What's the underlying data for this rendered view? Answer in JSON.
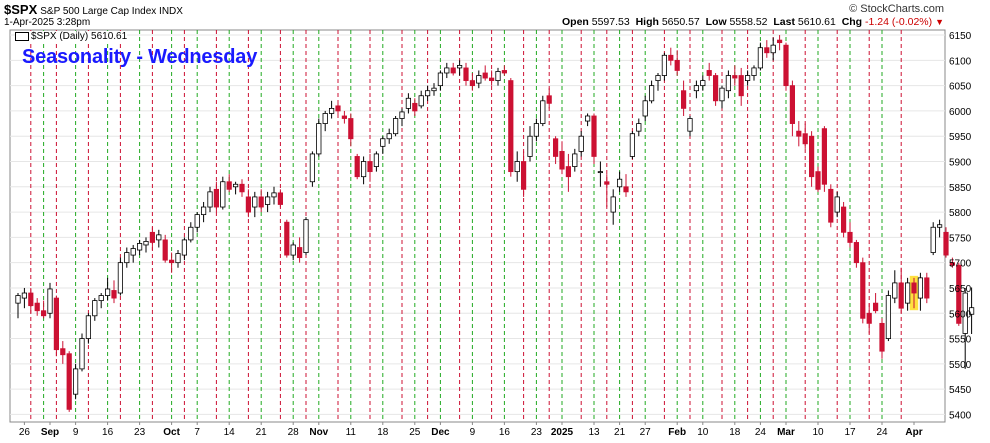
{
  "header": {
    "symbol": "$SPX",
    "description": "S&P 500 Large Cap Index INDX",
    "datetime": "1-Apr-2025 3:28pm",
    "brand": "© StockCharts.com",
    "open_label": "Open",
    "open": "5597.53",
    "high_label": "High",
    "high": "5650.57",
    "low_label": "Low",
    "low": "5558.52",
    "last_label": "Last",
    "last": "5610.61",
    "chg_label": "Chg",
    "chg": "-1.24 (-0.02%)"
  },
  "legend": {
    "text": "$SPX (Daily) 5610.61"
  },
  "overlay_title": "Seasonality - Wednesday",
  "colors": {
    "up": "#ffffff",
    "up_stroke": "#000000",
    "down": "#cc1133",
    "green_line": "#22aa22",
    "red_line": "#cc1133",
    "highlight": "#ffd700"
  },
  "chart_data": {
    "type": "candlestick",
    "title": "Seasonality - Wednesday",
    "ylim": [
      5385,
      6160
    ],
    "y_ticks": [
      5400,
      5450,
      5500,
      5550,
      5600,
      5650,
      5700,
      5750,
      5800,
      5850,
      5900,
      5950,
      6000,
      6050,
      6100,
      6150
    ],
    "x_ticks": [
      {
        "i": 1,
        "label": "26"
      },
      {
        "i": 5,
        "label": "Sep"
      },
      {
        "i": 9,
        "label": "9"
      },
      {
        "i": 14,
        "label": "16"
      },
      {
        "i": 19,
        "label": "23"
      },
      {
        "i": 24,
        "label": "Oct"
      },
      {
        "i": 28,
        "label": "7"
      },
      {
        "i": 33,
        "label": "14"
      },
      {
        "i": 38,
        "label": "21"
      },
      {
        "i": 43,
        "label": "28"
      },
      {
        "i": 47,
        "label": "Nov"
      },
      {
        "i": 52,
        "label": "11"
      },
      {
        "i": 57,
        "label": "18"
      },
      {
        "i": 62,
        "label": "25"
      },
      {
        "i": 66,
        "label": "Dec"
      },
      {
        "i": 71,
        "label": "9"
      },
      {
        "i": 76,
        "label": "16"
      },
      {
        "i": 81,
        "label": "23"
      },
      {
        "i": 85,
        "label": "2025"
      },
      {
        "i": 90,
        "label": "13"
      },
      {
        "i": 94,
        "label": "21"
      },
      {
        "i": 98,
        "label": "27"
      },
      {
        "i": 103,
        "label": "Feb"
      },
      {
        "i": 107,
        "label": "10"
      },
      {
        "i": 112,
        "label": "18"
      },
      {
        "i": 116,
        "label": "24"
      },
      {
        "i": 120,
        "label": "Mar"
      },
      {
        "i": 125,
        "label": "10"
      },
      {
        "i": 130,
        "label": "17"
      },
      {
        "i": 135,
        "label": "24"
      },
      {
        "i": 140,
        "label": "Apr"
      }
    ],
    "seasonality_lines": {
      "green": [
        4,
        9,
        14,
        19,
        24,
        28,
        33,
        38,
        43,
        47,
        52,
        57,
        62,
        66,
        71,
        76,
        81,
        85,
        90,
        94,
        98,
        103,
        107,
        112,
        116,
        120,
        125,
        130,
        135
      ],
      "red": [
        2,
        6,
        11,
        16,
        21,
        26,
        31,
        36,
        41,
        45,
        50,
        55,
        60,
        64,
        69,
        74,
        79,
        83,
        88,
        92,
        96,
        101,
        105,
        110,
        114,
        118,
        123,
        128,
        133,
        138
      ]
    },
    "highlight_index": 140,
    "candles": [
      {
        "o": 5620,
        "h": 5640,
        "l": 5590,
        "c": 5635
      },
      {
        "o": 5630,
        "h": 5650,
        "l": 5610,
        "c": 5640
      },
      {
        "o": 5640,
        "h": 5650,
        "l": 5600,
        "c": 5615
      },
      {
        "o": 5620,
        "h": 5630,
        "l": 5595,
        "c": 5605
      },
      {
        "o": 5605,
        "h": 5625,
        "l": 5590,
        "c": 5595
      },
      {
        "o": 5600,
        "h": 5660,
        "l": 5590,
        "c": 5648
      },
      {
        "o": 5630,
        "h": 5635,
        "l": 5515,
        "c": 5528
      },
      {
        "o": 5530,
        "h": 5545,
        "l": 5500,
        "c": 5518
      },
      {
        "o": 5520,
        "h": 5525,
        "l": 5405,
        "c": 5410
      },
      {
        "o": 5440,
        "h": 5500,
        "l": 5430,
        "c": 5490
      },
      {
        "o": 5490,
        "h": 5560,
        "l": 5485,
        "c": 5550
      },
      {
        "o": 5550,
        "h": 5600,
        "l": 5540,
        "c": 5595
      },
      {
        "o": 5595,
        "h": 5630,
        "l": 5585,
        "c": 5625
      },
      {
        "o": 5625,
        "h": 5640,
        "l": 5610,
        "c": 5635
      },
      {
        "o": 5635,
        "h": 5670,
        "l": 5625,
        "c": 5648
      },
      {
        "o": 5645,
        "h": 5665,
        "l": 5620,
        "c": 5630
      },
      {
        "o": 5640,
        "h": 5710,
        "l": 5635,
        "c": 5700
      },
      {
        "o": 5700,
        "h": 5730,
        "l": 5690,
        "c": 5720
      },
      {
        "o": 5715,
        "h": 5735,
        "l": 5700,
        "c": 5728
      },
      {
        "o": 5725,
        "h": 5745,
        "l": 5715,
        "c": 5738
      },
      {
        "o": 5735,
        "h": 5750,
        "l": 5720,
        "c": 5742
      },
      {
        "o": 5760,
        "h": 5770,
        "l": 5725,
        "c": 5740
      },
      {
        "o": 5745,
        "h": 5765,
        "l": 5730,
        "c": 5755
      },
      {
        "o": 5745,
        "h": 5755,
        "l": 5700,
        "c": 5705
      },
      {
        "o": 5705,
        "h": 5720,
        "l": 5680,
        "c": 5700
      },
      {
        "o": 5700,
        "h": 5725,
        "l": 5690,
        "c": 5718
      },
      {
        "o": 5715,
        "h": 5750,
        "l": 5705,
        "c": 5745
      },
      {
        "o": 5745,
        "h": 5780,
        "l": 5740,
        "c": 5770
      },
      {
        "o": 5770,
        "h": 5800,
        "l": 5760,
        "c": 5795
      },
      {
        "o": 5795,
        "h": 5820,
        "l": 5780,
        "c": 5810
      },
      {
        "o": 5810,
        "h": 5850,
        "l": 5800,
        "c": 5840
      },
      {
        "o": 5845,
        "h": 5860,
        "l": 5800,
        "c": 5810
      },
      {
        "o": 5810,
        "h": 5870,
        "l": 5805,
        "c": 5860
      },
      {
        "o": 5860,
        "h": 5875,
        "l": 5840,
        "c": 5845
      },
      {
        "o": 5850,
        "h": 5860,
        "l": 5835,
        "c": 5855
      },
      {
        "o": 5855,
        "h": 5865,
        "l": 5830,
        "c": 5840
      },
      {
        "o": 5830,
        "h": 5845,
        "l": 5790,
        "c": 5800
      },
      {
        "o": 5810,
        "h": 5840,
        "l": 5790,
        "c": 5830
      },
      {
        "o": 5830,
        "h": 5845,
        "l": 5800,
        "c": 5810
      },
      {
        "o": 5815,
        "h": 5840,
        "l": 5800,
        "c": 5830
      },
      {
        "o": 5830,
        "h": 5850,
        "l": 5815,
        "c": 5838
      },
      {
        "o": 5838,
        "h": 5845,
        "l": 5810,
        "c": 5815
      },
      {
        "o": 5780,
        "h": 5785,
        "l": 5710,
        "c": 5715
      },
      {
        "o": 5715,
        "h": 5740,
        "l": 5705,
        "c": 5735
      },
      {
        "o": 5730,
        "h": 5750,
        "l": 5700,
        "c": 5710
      },
      {
        "o": 5720,
        "h": 5790,
        "l": 5715,
        "c": 5785
      },
      {
        "o": 5860,
        "h": 5920,
        "l": 5850,
        "c": 5915
      },
      {
        "o": 5915,
        "h": 5985,
        "l": 5910,
        "c": 5975
      },
      {
        "o": 5975,
        "h": 6000,
        "l": 5960,
        "c": 5995
      },
      {
        "o": 5995,
        "h": 6020,
        "l": 5985,
        "c": 6005
      },
      {
        "o": 6010,
        "h": 6020,
        "l": 5990,
        "c": 6000
      },
      {
        "o": 5990,
        "h": 6000,
        "l": 5975,
        "c": 5985
      },
      {
        "o": 5985,
        "h": 5995,
        "l": 5930,
        "c": 5945
      },
      {
        "o": 5910,
        "h": 5915,
        "l": 5865,
        "c": 5870
      },
      {
        "o": 5870,
        "h": 5910,
        "l": 5855,
        "c": 5900
      },
      {
        "o": 5900,
        "h": 5915,
        "l": 5860,
        "c": 5880
      },
      {
        "o": 5890,
        "h": 5920,
        "l": 5880,
        "c": 5915
      },
      {
        "o": 5930,
        "h": 5950,
        "l": 5915,
        "c": 5945
      },
      {
        "o": 5945,
        "h": 5965,
        "l": 5935,
        "c": 5955
      },
      {
        "o": 5955,
        "h": 5990,
        "l": 5950,
        "c": 5985
      },
      {
        "o": 5985,
        "h": 6005,
        "l": 5970,
        "c": 5998
      },
      {
        "o": 6005,
        "h": 6035,
        "l": 5995,
        "c": 6025
      },
      {
        "o": 6015,
        "h": 6025,
        "l": 5990,
        "c": 6000
      },
      {
        "o": 6010,
        "h": 6040,
        "l": 6005,
        "c": 6030
      },
      {
        "o": 6030,
        "h": 6050,
        "l": 6020,
        "c": 6040
      },
      {
        "o": 6040,
        "h": 6055,
        "l": 6030,
        "c": 6045
      },
      {
        "o": 6050,
        "h": 6080,
        "l": 6040,
        "c": 6075
      },
      {
        "o": 6075,
        "h": 6095,
        "l": 6065,
        "c": 6085
      },
      {
        "o": 6085,
        "h": 6095,
        "l": 6070,
        "c": 6075
      },
      {
        "o": 6085,
        "h": 6100,
        "l": 6070,
        "c": 6090
      },
      {
        "o": 6085,
        "h": 6095,
        "l": 6050,
        "c": 6060
      },
      {
        "o": 6060,
        "h": 6075,
        "l": 6040,
        "c": 6050
      },
      {
        "o": 6055,
        "h": 6080,
        "l": 6045,
        "c": 6070
      },
      {
        "o": 6075,
        "h": 6090,
        "l": 6060,
        "c": 6065
      },
      {
        "o": 6065,
        "h": 6080,
        "l": 6050,
        "c": 6060
      },
      {
        "o": 6060,
        "h": 6085,
        "l": 6050,
        "c": 6078
      },
      {
        "o": 6080,
        "h": 6090,
        "l": 6070,
        "c": 6075
      },
      {
        "o": 6060,
        "h": 6065,
        "l": 5870,
        "c": 5880
      },
      {
        "o": 5880,
        "h": 5920,
        "l": 5860,
        "c": 5900
      },
      {
        "o": 5900,
        "h": 5920,
        "l": 5830,
        "c": 5845
      },
      {
        "o": 5910,
        "h": 5970,
        "l": 5900,
        "c": 5950
      },
      {
        "o": 5950,
        "h": 5985,
        "l": 5940,
        "c": 5975
      },
      {
        "o": 5975,
        "h": 6030,
        "l": 5970,
        "c": 6020
      },
      {
        "o": 6030,
        "h": 6045,
        "l": 6005,
        "c": 6015
      },
      {
        "o": 5945,
        "h": 5950,
        "l": 5895,
        "c": 5910
      },
      {
        "o": 5920,
        "h": 5940,
        "l": 5875,
        "c": 5885
      },
      {
        "o": 5890,
        "h": 5915,
        "l": 5840,
        "c": 5870
      },
      {
        "o": 5890,
        "h": 5925,
        "l": 5880,
        "c": 5915
      },
      {
        "o": 5920,
        "h": 5960,
        "l": 5910,
        "c": 5950
      },
      {
        "o": 5980,
        "h": 5995,
        "l": 5970,
        "c": 5990
      },
      {
        "o": 5990,
        "h": 5995,
        "l": 5895,
        "c": 5910
      },
      {
        "o": 5880,
        "h": 5900,
        "l": 5850,
        "c": 5880
      },
      {
        "o": 5860,
        "h": 5875,
        "l": 5810,
        "c": 5855
      },
      {
        "o": 5800,
        "h": 5845,
        "l": 5775,
        "c": 5830
      },
      {
        "o": 5850,
        "h": 5880,
        "l": 5840,
        "c": 5865
      },
      {
        "o": 5850,
        "h": 5875,
        "l": 5830,
        "c": 5840
      },
      {
        "o": 5910,
        "h": 5960,
        "l": 5905,
        "c": 5955
      },
      {
        "o": 5960,
        "h": 5985,
        "l": 5950,
        "c": 5975
      },
      {
        "o": 5990,
        "h": 6030,
        "l": 5980,
        "c": 6020
      },
      {
        "o": 6020,
        "h": 6060,
        "l": 6015,
        "c": 6050
      },
      {
        "o": 6060,
        "h": 6075,
        "l": 6040,
        "c": 6070
      },
      {
        "o": 6070,
        "h": 6115,
        "l": 6060,
        "c": 6110
      },
      {
        "o": 6110,
        "h": 6125,
        "l": 6090,
        "c": 6100
      },
      {
        "o": 6100,
        "h": 6120,
        "l": 6070,
        "c": 6080
      },
      {
        "o": 6040,
        "h": 6060,
        "l": 5990,
        "c": 6005
      },
      {
        "o": 5960,
        "h": 5990,
        "l": 5950,
        "c": 5985
      },
      {
        "o": 6040,
        "h": 6060,
        "l": 6025,
        "c": 6050
      },
      {
        "o": 6050,
        "h": 6070,
        "l": 6040,
        "c": 6060
      },
      {
        "o": 6080,
        "h": 6095,
        "l": 6060,
        "c": 6070
      },
      {
        "o": 6070,
        "h": 6075,
        "l": 6010,
        "c": 6020
      },
      {
        "o": 6020,
        "h": 6050,
        "l": 6005,
        "c": 6045
      },
      {
        "o": 6040,
        "h": 6080,
        "l": 6025,
        "c": 6070
      },
      {
        "o": 6070,
        "h": 6090,
        "l": 6050,
        "c": 6065
      },
      {
        "o": 6070,
        "h": 6085,
        "l": 6010,
        "c": 6030
      },
      {
        "o": 6060,
        "h": 6080,
        "l": 6050,
        "c": 6070
      },
      {
        "o": 6070,
        "h": 6090,
        "l": 6060,
        "c": 6085
      },
      {
        "o": 6085,
        "h": 6135,
        "l": 6080,
        "c": 6125
      },
      {
        "o": 6125,
        "h": 6140,
        "l": 6105,
        "c": 6115
      },
      {
        "o": 6115,
        "h": 6145,
        "l": 6100,
        "c": 6130
      },
      {
        "o": 6140,
        "h": 6150,
        "l": 6120,
        "c": 6135
      },
      {
        "o": 6130,
        "h": 6135,
        "l": 6040,
        "c": 6050
      },
      {
        "o": 6050,
        "h": 6060,
        "l": 5950,
        "c": 5975
      },
      {
        "o": 5960,
        "h": 5980,
        "l": 5930,
        "c": 5950
      },
      {
        "o": 5955,
        "h": 5975,
        "l": 5925,
        "c": 5935
      },
      {
        "o": 5950,
        "h": 5960,
        "l": 5850,
        "c": 5870
      },
      {
        "o": 5880,
        "h": 5890,
        "l": 5840,
        "c": 5845
      },
      {
        "o": 5965,
        "h": 5970,
        "l": 5840,
        "c": 5855
      },
      {
        "o": 5845,
        "h": 5855,
        "l": 5770,
        "c": 5780
      },
      {
        "o": 5800,
        "h": 5840,
        "l": 5790,
        "c": 5830
      },
      {
        "o": 5810,
        "h": 5820,
        "l": 5750,
        "c": 5760
      },
      {
        "o": 5760,
        "h": 5780,
        "l": 5730,
        "c": 5740
      },
      {
        "o": 5740,
        "h": 5745,
        "l": 5690,
        "c": 5700
      },
      {
        "o": 5700,
        "h": 5710,
        "l": 5580,
        "c": 5590
      },
      {
        "o": 5600,
        "h": 5620,
        "l": 5560,
        "c": 5580
      },
      {
        "o": 5620,
        "h": 5640,
        "l": 5600,
        "c": 5605
      },
      {
        "o": 5580,
        "h": 5590,
        "l": 5510,
        "c": 5525
      },
      {
        "o": 5550,
        "h": 5645,
        "l": 5545,
        "c": 5635
      },
      {
        "o": 5630,
        "h": 5685,
        "l": 5620,
        "c": 5660
      },
      {
        "o": 5660,
        "h": 5690,
        "l": 5600,
        "c": 5610
      },
      {
        "o": 5620,
        "h": 5670,
        "l": 5605,
        "c": 5660
      },
      {
        "o": 5660,
        "h": 5670,
        "l": 5610,
        "c": 5640
      },
      {
        "o": 5630,
        "h": 5680,
        "l": 5605,
        "c": 5670
      },
      {
        "o": 5670,
        "h": 5680,
        "l": 5620,
        "c": 5630
      },
      {
        "o": 5720,
        "h": 5780,
        "l": 5715,
        "c": 5770
      },
      {
        "o": 5770,
        "h": 5785,
        "l": 5750,
        "c": 5775
      },
      {
        "o": 5760,
        "h": 5770,
        "l": 5710,
        "c": 5715
      },
      {
        "o": 5700,
        "h": 5710,
        "l": 5690,
        "c": 5695
      },
      {
        "o": 5695,
        "h": 5700,
        "l": 5575,
        "c": 5580
      },
      {
        "o": 5560,
        "h": 5650,
        "l": 5490,
        "c": 5640
      },
      {
        "o": 5598,
        "h": 5651,
        "l": 5559,
        "c": 5611
      }
    ]
  }
}
